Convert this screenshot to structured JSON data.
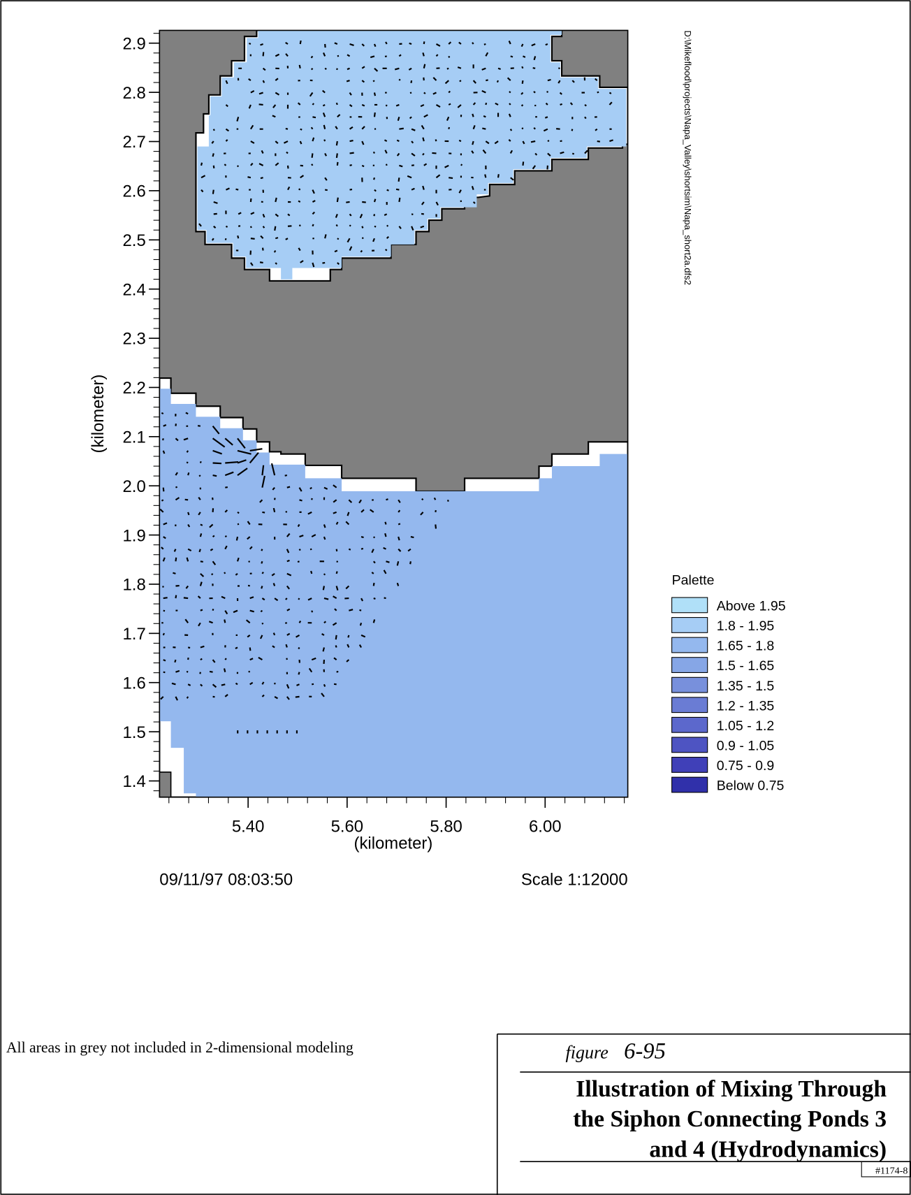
{
  "plot": {
    "xlim": [
      5.221,
      6.167
    ],
    "ylim": [
      1.367,
      2.926
    ],
    "xticks": [
      {
        "value": 5.4,
        "label": "5.40"
      },
      {
        "value": 5.6,
        "label": "5.60"
      },
      {
        "value": 5.8,
        "label": "5.80"
      },
      {
        "value": 6.0,
        "label": "6.00"
      }
    ],
    "yticks": [
      1.4,
      1.5,
      1.6,
      1.7,
      1.8,
      1.9,
      {
        "value": 2.0,
        "label": "2.0"
      },
      2.1,
      2.2,
      2.3,
      2.4,
      2.5,
      2.6,
      2.7,
      2.8,
      2.9
    ],
    "x_label": "(kilometer)",
    "y_label": "(kilometer)",
    "file_path": "D:\\Mikeflood\\projects\\Napa_Valley\\shortsim\\Napa_short2a.dfs2",
    "timestamp": "09/11/97 08:03:50",
    "scale": "Scale 1:12000"
  },
  "legend": {
    "title": "Palette",
    "items": [
      {
        "label": "Above 1.95",
        "color": "#b0e0f8"
      },
      {
        "label": "1.8 - 1.95",
        "color": "#a6cdf5"
      },
      {
        "label": "1.65 - 1.8",
        "color": "#94b8ee"
      },
      {
        "label": "1.5 - 1.65",
        "color": "#86a6e6"
      },
      {
        "label": "1.35 - 1.5",
        "color": "#7890dc"
      },
      {
        "label": "1.2 - 1.35",
        "color": "#6a7cd4"
      },
      {
        "label": "1.05 - 1.2",
        "color": "#5c68cc"
      },
      {
        "label": "0.9 - 1.05",
        "color": "#4e54c2"
      },
      {
        "label": "0.75 - 0.9",
        "color": "#4040b8"
      },
      {
        "label": "Below 0.75",
        "color": "#3030aa"
      }
    ]
  },
  "note": "All areas in grey not included in 2-dimensional modeling",
  "figure": {
    "label": "figure",
    "number": "6-95",
    "title_lines": [
      "Illustration of Mixing Through",
      "the Siphon Connecting Ponds 3",
      "and 4 (Hydrodynamics)"
    ],
    "code": "#1174-8"
  }
}
